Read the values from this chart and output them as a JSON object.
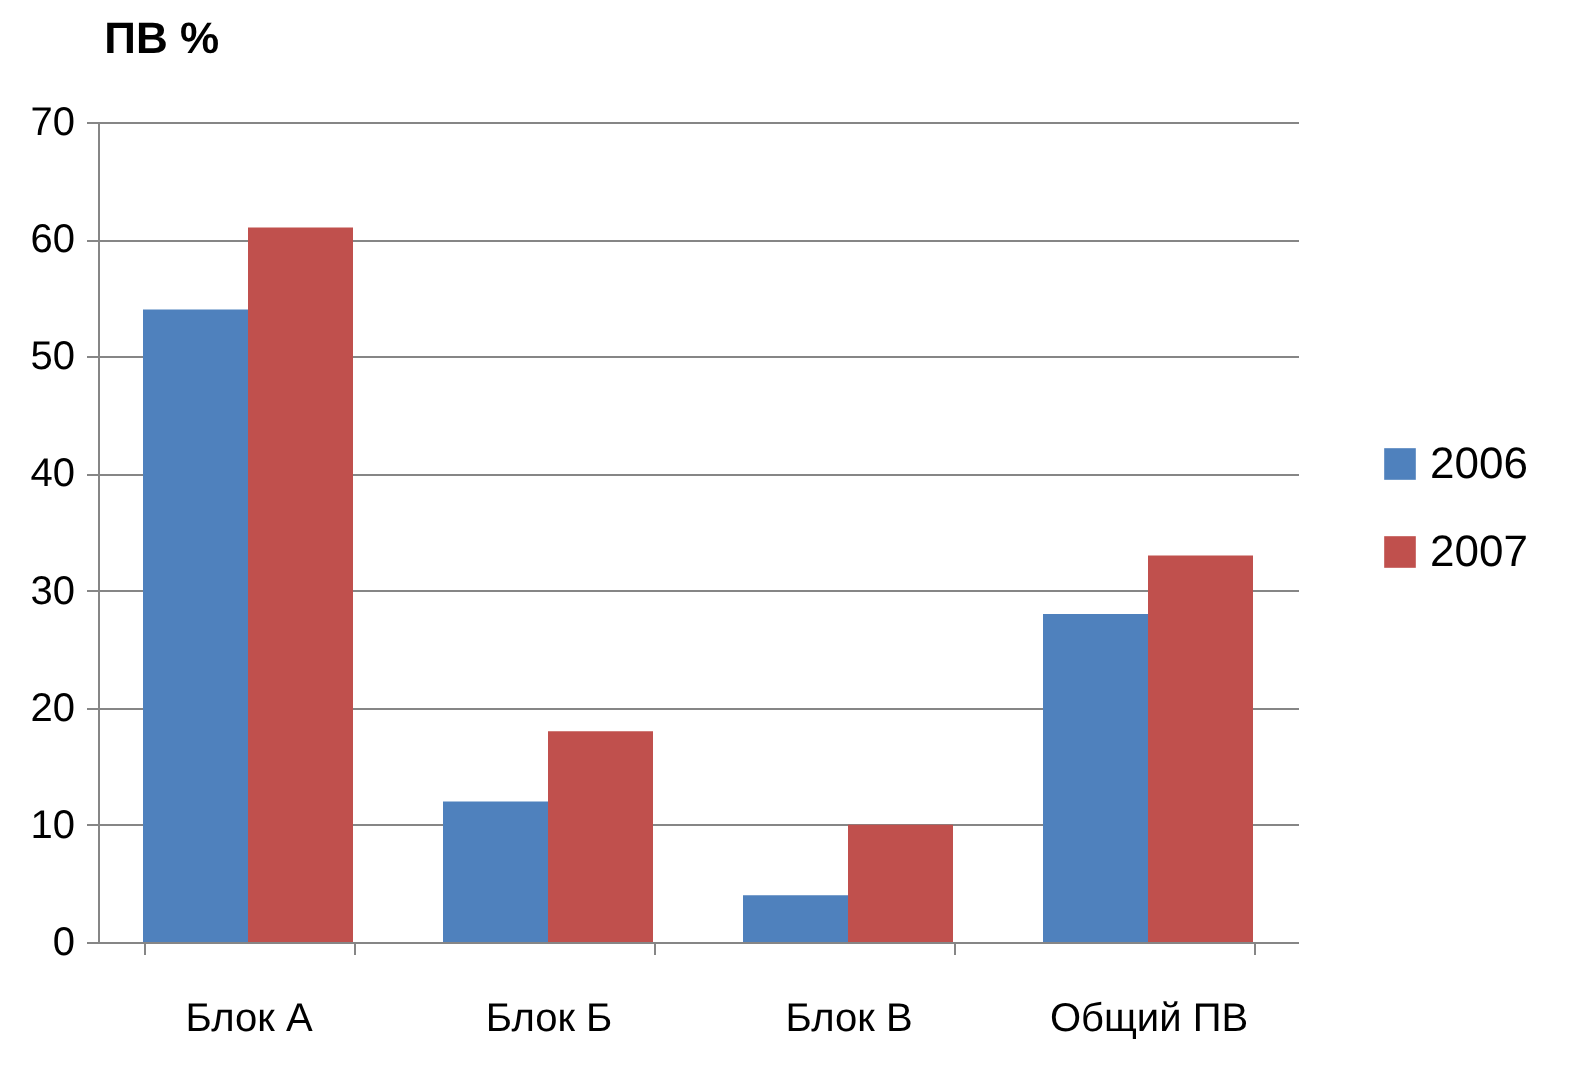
{
  "chart_data": {
    "type": "bar",
    "ylabel": "ПВ %",
    "categories": [
      "Блок А",
      "Блок Б",
      "Блок В",
      "Общий ПВ"
    ],
    "series": [
      {
        "name": "2006",
        "color": "#4f81bd",
        "values": [
          54,
          12,
          4,
          28
        ]
      },
      {
        "name": "2007",
        "color": "#c0504d",
        "values": [
          61,
          18,
          10,
          33
        ]
      }
    ],
    "ylim": [
      0,
      70
    ],
    "yticks": [
      0,
      10,
      20,
      30,
      40,
      50,
      60,
      70
    ],
    "grid": "y",
    "legend": "right"
  }
}
